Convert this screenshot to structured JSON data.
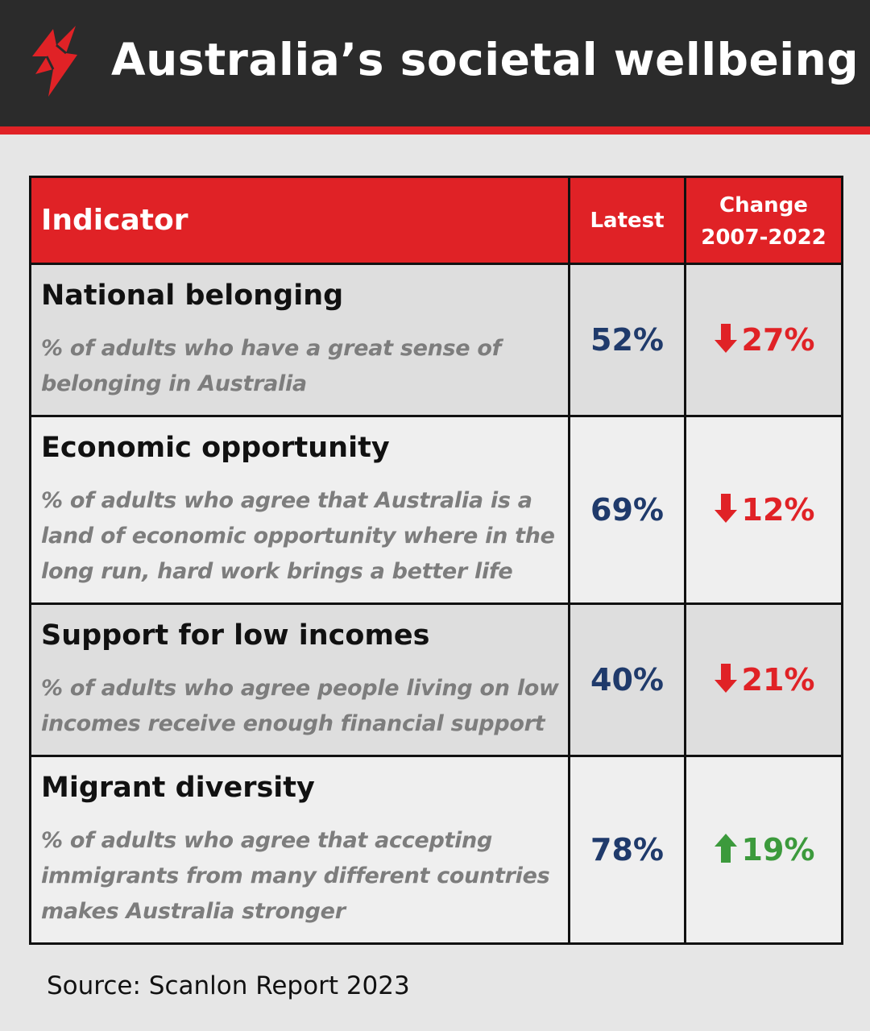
{
  "header": {
    "title": "Australia’s societal wellbeing"
  },
  "table": {
    "columns": {
      "indicator": "Indicator",
      "latest": "Latest",
      "change_line1": "Change",
      "change_line2": "2007-2022"
    },
    "rows": [
      {
        "title": "National belonging",
        "description": "% of adults who have a great sense of belonging in Australia",
        "latest": "52%",
        "change": "27%",
        "direction": "down",
        "arrow_icon": "arrow-down-icon"
      },
      {
        "title": "Economic opportunity",
        "description": "% of adults who agree that Australia is a land of economic opportunity where in the long run, hard work brings a better life",
        "latest": "69%",
        "change": "12%",
        "direction": "down",
        "arrow_icon": "arrow-down-icon"
      },
      {
        "title": "Support for low incomes",
        "description": "% of adults who agree people living on low incomes receive enough financial support",
        "latest": "40%",
        "change": "21%",
        "direction": "down",
        "arrow_icon": "arrow-down-icon"
      },
      {
        "title": "Migrant diversity",
        "description": "% of  adults who agree that accepting immigrants from many different countries makes Australia stronger",
        "latest": "78%",
        "change": "19%",
        "direction": "up",
        "arrow_icon": "arrow-up-icon"
      }
    ]
  },
  "footer": {
    "source": "Source: Scanlon Report 2023"
  },
  "colors": {
    "brand_red": "#e02226",
    "header_dark": "#2b2b2b",
    "latest_blue": "#1f3a6b",
    "increase_green": "#3c9a3c",
    "description_grey": "#7d7d7d"
  }
}
